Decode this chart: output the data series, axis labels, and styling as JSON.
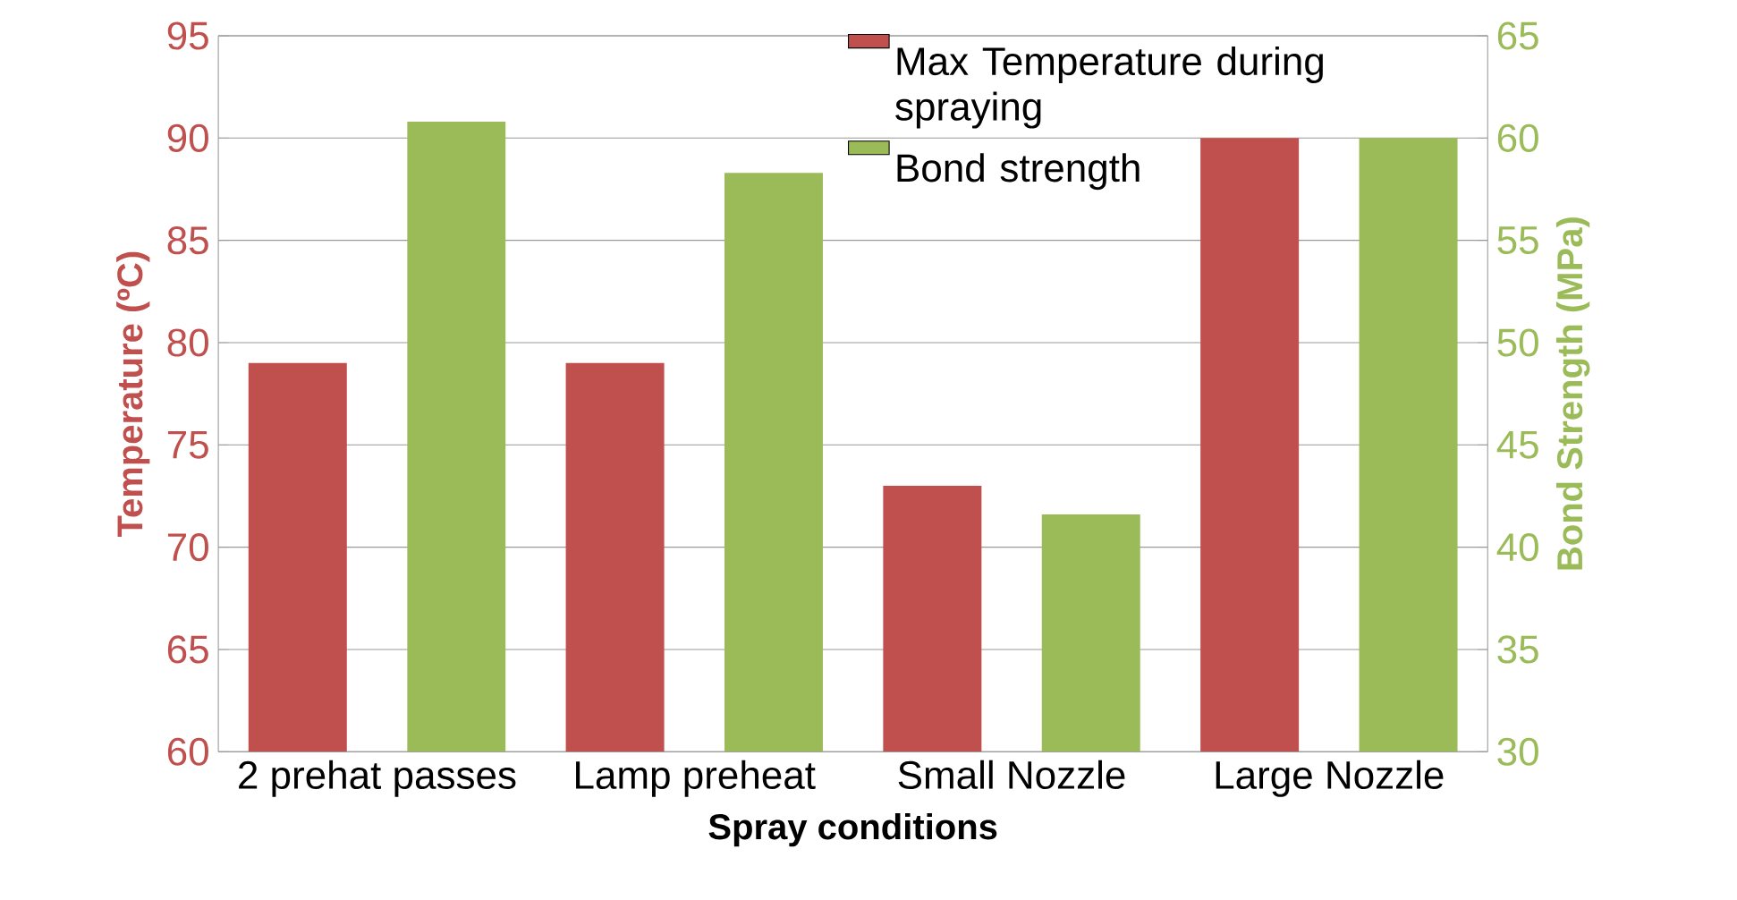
{
  "chart_data": {
    "type": "bar",
    "xlabel": "Spray conditions",
    "ylabel": "Temperature (ºC)",
    "y2label": "Bond Strength (MPa)",
    "categories": [
      "2 prehat passes",
      "Lamp preheat",
      "Small Nozzle",
      "Large Nozzle"
    ],
    "series": [
      {
        "name": "Max Temperature during spraying",
        "color": "#c0504d",
        "values": [
          79,
          79,
          73,
          90
        ]
      },
      {
        "name": "Bond strength",
        "color": "#9bbb59",
        "values": [
          60.8,
          58.3,
          41.6,
          60.0
        ],
        "axis": "y2"
      }
    ],
    "ylim": [
      60,
      95
    ],
    "yticks": [
      60,
      65,
      70,
      75,
      80,
      85,
      90,
      95
    ],
    "y2lim": [
      30,
      65
    ],
    "y2ticks": [
      30,
      35,
      40,
      45,
      50,
      55,
      60,
      65
    ],
    "legend": "top right",
    "grid": "y"
  }
}
